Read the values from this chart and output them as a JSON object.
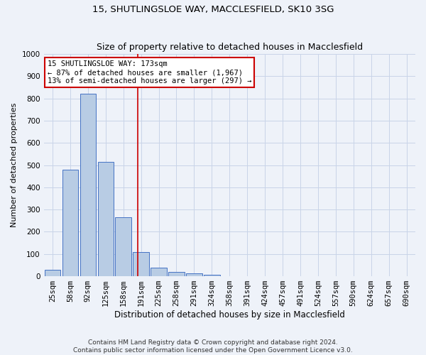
{
  "title": "15, SHUTLINGSLOE WAY, MACCLESFIELD, SK10 3SG",
  "subtitle": "Size of property relative to detached houses in Macclesfield",
  "xlabel": "Distribution of detached houses by size in Macclesfield",
  "ylabel": "Number of detached properties",
  "categories": [
    "25sqm",
    "58sqm",
    "92sqm",
    "125sqm",
    "158sqm",
    "191sqm",
    "225sqm",
    "258sqm",
    "291sqm",
    "324sqm",
    "358sqm",
    "391sqm",
    "424sqm",
    "457sqm",
    "491sqm",
    "524sqm",
    "557sqm",
    "590sqm",
    "624sqm",
    "657sqm",
    "690sqm"
  ],
  "values": [
    28,
    480,
    820,
    515,
    265,
    110,
    38,
    18,
    12,
    8,
    0,
    0,
    0,
    0,
    0,
    0,
    0,
    0,
    0,
    0,
    0
  ],
  "bar_color": "#b8cce4",
  "bar_edge_color": "#4472c4",
  "grid_color": "#c8d4e8",
  "background_color": "#eef2f9",
  "vline_x": 4.82,
  "vline_color": "#cc0000",
  "annotation_text": "15 SHUTLINGSLOE WAY: 173sqm\n← 87% of detached houses are smaller (1,967)\n13% of semi-detached houses are larger (297) →",
  "annotation_box_color": "#ffffff",
  "annotation_box_edge": "#cc0000",
  "ylim": [
    0,
    1000
  ],
  "yticks": [
    0,
    100,
    200,
    300,
    400,
    500,
    600,
    700,
    800,
    900,
    1000
  ],
  "footer": "Contains HM Land Registry data © Crown copyright and database right 2024.\nContains public sector information licensed under the Open Government Licence v3.0.",
  "title_fontsize": 9.5,
  "subtitle_fontsize": 9,
  "xlabel_fontsize": 8.5,
  "ylabel_fontsize": 8,
  "tick_fontsize": 7.5,
  "annotation_fontsize": 7.5,
  "footer_fontsize": 6.5
}
